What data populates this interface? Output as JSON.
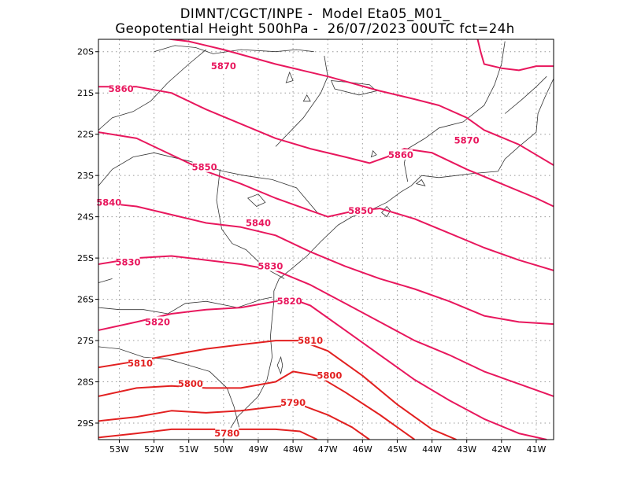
{
  "title": {
    "line1": "DIMNT/CGCT/INPE -  Model Eta05_M01_",
    "line2": "Geopotential Height 500hPa -  26/07/2023 00UTC fct=24h"
  },
  "axes": {
    "lon_labels": [
      "53W",
      "52W",
      "51W",
      "50W",
      "49W",
      "48W",
      "47W",
      "46W",
      "45W",
      "44W",
      "43W",
      "42W",
      "41W"
    ],
    "lat_labels": [
      "20S",
      "21S",
      "22S",
      "23S",
      "24S",
      "25S",
      "26S",
      "27S",
      "28S",
      "29S"
    ],
    "lon_range": [
      -53.6,
      -40.5
    ],
    "lat_range": [
      -29.4,
      -19.7
    ],
    "grid": true
  },
  "contours": [
    {
      "value": 5870,
      "label": "5870",
      "color": "#e8175d",
      "points": [
        [
          -53.6,
          -19.65
        ],
        [
          -52.0,
          -19.65
        ],
        [
          -51.0,
          -19.75
        ],
        [
          -50.0,
          -19.95
        ],
        [
          -48.5,
          -20.3
        ],
        [
          -47.0,
          -20.6
        ],
        [
          -45.5,
          -20.95
        ],
        [
          -44.5,
          -21.15
        ],
        [
          -43.8,
          -21.3
        ],
        [
          -43.0,
          -21.6
        ],
        [
          -42.5,
          -21.9
        ],
        [
          -41.5,
          -22.25
        ],
        [
          -40.5,
          -22.75
        ]
      ]
    },
    {
      "value": 5870,
      "label": "",
      "color": "#e8175d",
      "points": [
        [
          -42.7,
          -19.65
        ],
        [
          -42.6,
          -20.0
        ],
        [
          -42.5,
          -20.3
        ],
        [
          -42.0,
          -20.4
        ],
        [
          -41.5,
          -20.45
        ],
        [
          -41.0,
          -20.35
        ],
        [
          -40.5,
          -20.35
        ]
      ]
    },
    {
      "value": 5860,
      "label": "5860",
      "color": "#e8175d",
      "points": [
        [
          -53.6,
          -20.85
        ],
        [
          -52.5,
          -20.85
        ],
        [
          -51.5,
          -21.0
        ],
        [
          -50.5,
          -21.4
        ],
        [
          -49.5,
          -21.75
        ],
        [
          -48.5,
          -22.1
        ],
        [
          -47.5,
          -22.35
        ],
        [
          -46.5,
          -22.55
        ],
        [
          -45.8,
          -22.7
        ],
        [
          -45.3,
          -22.55
        ],
        [
          -44.8,
          -22.35
        ],
        [
          -44.0,
          -22.45
        ],
        [
          -43.0,
          -22.85
        ],
        [
          -42.0,
          -23.2
        ],
        [
          -41.0,
          -23.55
        ],
        [
          -40.5,
          -23.75
        ]
      ]
    },
    {
      "value": 5850,
      "label": "5850",
      "color": "#e8175d",
      "points": [
        [
          -53.6,
          -21.95
        ],
        [
          -52.5,
          -22.1
        ],
        [
          -51.5,
          -22.5
        ],
        [
          -50.5,
          -22.9
        ],
        [
          -49.5,
          -23.2
        ],
        [
          -48.5,
          -23.55
        ],
        [
          -47.5,
          -23.85
        ],
        [
          -47.0,
          -24.0
        ],
        [
          -46.2,
          -23.85
        ],
        [
          -45.5,
          -23.8
        ],
        [
          -44.5,
          -24.05
        ],
        [
          -43.5,
          -24.4
        ],
        [
          -42.5,
          -24.75
        ],
        [
          -41.5,
          -25.05
        ],
        [
          -40.5,
          -25.3
        ]
      ]
    },
    {
      "value": 5840,
      "label": "5840",
      "color": "#e8175d",
      "points": [
        [
          -53.6,
          -23.65
        ],
        [
          -52.5,
          -23.75
        ],
        [
          -51.5,
          -23.95
        ],
        [
          -50.5,
          -24.15
        ],
        [
          -49.5,
          -24.25
        ],
        [
          -48.5,
          -24.45
        ],
        [
          -47.5,
          -24.85
        ],
        [
          -46.5,
          -25.2
        ],
        [
          -45.5,
          -25.5
        ],
        [
          -44.5,
          -25.75
        ],
        [
          -43.5,
          -26.05
        ],
        [
          -42.5,
          -26.4
        ],
        [
          -41.5,
          -26.55
        ],
        [
          -40.5,
          -26.6
        ]
      ]
    },
    {
      "value": 5830,
      "label": "5830",
      "color": "#e8175d",
      "points": [
        [
          -53.6,
          -25.15
        ],
        [
          -52.5,
          -25.0
        ],
        [
          -51.5,
          -24.95
        ],
        [
          -50.5,
          -25.05
        ],
        [
          -49.5,
          -25.15
        ],
        [
          -48.5,
          -25.3
        ],
        [
          -47.5,
          -25.65
        ],
        [
          -46.5,
          -26.1
        ],
        [
          -45.5,
          -26.55
        ],
        [
          -44.5,
          -27.0
        ],
        [
          -43.5,
          -27.35
        ],
        [
          -42.5,
          -27.75
        ],
        [
          -41.5,
          -28.05
        ],
        [
          -40.5,
          -28.35
        ]
      ]
    },
    {
      "value": 5820,
      "label": "5820",
      "color": "#e8175d",
      "points": [
        [
          -53.6,
          -26.75
        ],
        [
          -52.5,
          -26.55
        ],
        [
          -51.5,
          -26.35
        ],
        [
          -50.5,
          -26.25
        ],
        [
          -49.5,
          -26.2
        ],
        [
          -48.5,
          -26.05
        ],
        [
          -48.0,
          -26.0
        ],
        [
          -47.5,
          -26.15
        ],
        [
          -46.5,
          -26.75
        ],
        [
          -45.5,
          -27.35
        ],
        [
          -44.5,
          -27.95
        ],
        [
          -43.5,
          -28.45
        ],
        [
          -42.5,
          -28.9
        ],
        [
          -41.5,
          -29.25
        ],
        [
          -40.7,
          -29.4
        ]
      ]
    },
    {
      "value": 5810,
      "label": "5810",
      "color": "#e22020",
      "points": [
        [
          -53.6,
          -27.65
        ],
        [
          -52.5,
          -27.5
        ],
        [
          -51.5,
          -27.35
        ],
        [
          -50.5,
          -27.2
        ],
        [
          -49.5,
          -27.1
        ],
        [
          -48.5,
          -27.0
        ],
        [
          -47.8,
          -27.0
        ],
        [
          -47.0,
          -27.25
        ],
        [
          -46.0,
          -27.85
        ],
        [
          -45.0,
          -28.55
        ],
        [
          -44.0,
          -29.15
        ],
        [
          -43.3,
          -29.4
        ]
      ]
    },
    {
      "value": 5800,
      "label": "5800",
      "color": "#e22020",
      "points": [
        [
          -53.6,
          -28.35
        ],
        [
          -52.5,
          -28.15
        ],
        [
          -51.5,
          -28.1
        ],
        [
          -50.5,
          -28.15
        ],
        [
          -49.5,
          -28.15
        ],
        [
          -48.5,
          -28.0
        ],
        [
          -48.0,
          -27.75
        ],
        [
          -47.3,
          -27.85
        ],
        [
          -46.5,
          -28.25
        ],
        [
          -45.5,
          -28.8
        ],
        [
          -45.0,
          -29.1
        ],
        [
          -44.5,
          -29.4
        ]
      ]
    },
    {
      "value": 5790,
      "label": "5790",
      "color": "#e22020",
      "points": [
        [
          -53.6,
          -28.95
        ],
        [
          -52.5,
          -28.85
        ],
        [
          -51.5,
          -28.7
        ],
        [
          -50.5,
          -28.75
        ],
        [
          -49.5,
          -28.7
        ],
        [
          -48.5,
          -28.6
        ],
        [
          -47.8,
          -28.55
        ],
        [
          -47.0,
          -28.8
        ],
        [
          -46.3,
          -29.1
        ],
        [
          -45.8,
          -29.4
        ]
      ]
    },
    {
      "value": 5780,
      "label": "5780",
      "color": "#e22020",
      "points": [
        [
          -53.6,
          -29.35
        ],
        [
          -52.5,
          -29.25
        ],
        [
          -51.5,
          -29.15
        ],
        [
          -50.5,
          -29.15
        ],
        [
          -49.5,
          -29.15
        ],
        [
          -48.5,
          -29.15
        ],
        [
          -47.8,
          -29.2
        ],
        [
          -47.3,
          -29.4
        ]
      ]
    }
  ],
  "contour_labels": [
    {
      "text": "5870",
      "lon": -50.0,
      "lat": -20.35,
      "color": "#e8175d"
    },
    {
      "text": "5870",
      "lon": -43.0,
      "lat": -22.15,
      "color": "#e8175d"
    },
    {
      "text": "5860",
      "lon": -52.95,
      "lat": -20.9,
      "color": "#e8175d"
    },
    {
      "text": "5860",
      "lon": -44.9,
      "lat": -22.5,
      "color": "#e8175d"
    },
    {
      "text": "5850",
      "lon": -50.55,
      "lat": -22.8,
      "color": "#e8175d"
    },
    {
      "text": "5850",
      "lon": -46.05,
      "lat": -23.85,
      "color": "#e8175d"
    },
    {
      "text": "5840",
      "lon": -53.3,
      "lat": -23.65,
      "color": "#e8175d"
    },
    {
      "text": "5840",
      "lon": -49.0,
      "lat": -24.15,
      "color": "#e8175d"
    },
    {
      "text": "5830",
      "lon": -52.75,
      "lat": -25.1,
      "color": "#e8175d"
    },
    {
      "text": "5830",
      "lon": -48.65,
      "lat": -25.2,
      "color": "#e8175d"
    },
    {
      "text": "5820",
      "lon": -51.9,
      "lat": -26.55,
      "color": "#e8175d"
    },
    {
      "text": "5820",
      "lon": -48.1,
      "lat": -26.05,
      "color": "#e8175d"
    },
    {
      "text": "5810",
      "lon": -52.4,
      "lat": -27.55,
      "color": "#e22020"
    },
    {
      "text": "5810",
      "lon": -47.5,
      "lat": -27.0,
      "color": "#e22020"
    },
    {
      "text": "5800",
      "lon": -50.95,
      "lat": -28.05,
      "color": "#e22020"
    },
    {
      "text": "5800",
      "lon": -46.95,
      "lat": -27.85,
      "color": "#e22020"
    },
    {
      "text": "5790",
      "lon": -48.0,
      "lat": -28.5,
      "color": "#e22020"
    },
    {
      "text": "5780",
      "lon": -49.9,
      "lat": -29.25,
      "color": "#e22020"
    }
  ],
  "coastline": [
    [
      [
        -50.0,
        -29.4
      ],
      [
        -49.6,
        -28.85
      ],
      [
        -49.0,
        -28.35
      ],
      [
        -48.75,
        -27.95
      ],
      [
        -48.6,
        -27.4
      ],
      [
        -48.65,
        -26.9
      ],
      [
        -48.6,
        -26.45
      ],
      [
        -48.55,
        -26.05
      ],
      [
        -48.55,
        -25.8
      ],
      [
        -48.4,
        -25.5
      ],
      [
        -48.1,
        -25.3
      ],
      [
        -47.6,
        -24.95
      ],
      [
        -47.2,
        -24.6
      ],
      [
        -46.7,
        -24.2
      ],
      [
        -46.3,
        -24.0
      ],
      [
        -45.8,
        -23.85
      ],
      [
        -45.3,
        -23.65
      ],
      [
        -44.9,
        -23.4
      ],
      [
        -44.6,
        -23.25
      ],
      [
        -44.3,
        -23.0
      ],
      [
        -43.8,
        -23.05
      ],
      [
        -43.3,
        -23.0
      ],
      [
        -42.8,
        -22.95
      ],
      [
        -42.1,
        -22.9
      ],
      [
        -41.9,
        -22.6
      ],
      [
        -41.5,
        -22.3
      ],
      [
        -41.0,
        -21.95
      ],
      [
        -40.95,
        -21.5
      ],
      [
        -40.75,
        -21.1
      ],
      [
        -40.5,
        -20.65
      ]
    ]
  ],
  "borders": [
    [
      [
        -52.0,
        -20.0
      ],
      [
        -51.4,
        -19.85
      ],
      [
        -50.8,
        -19.9
      ],
      [
        -50.3,
        -20.05
      ],
      [
        -49.5,
        -19.95
      ],
      [
        -48.5,
        -20.0
      ],
      [
        -47.9,
        -19.95
      ],
      [
        -47.4,
        -20.0
      ]
    ],
    [
      [
        -53.6,
        -21.9
      ],
      [
        -53.2,
        -21.6
      ],
      [
        -52.6,
        -21.45
      ],
      [
        -52.1,
        -21.2
      ],
      [
        -51.6,
        -20.75
      ],
      [
        -51.0,
        -20.3
      ],
      [
        -50.5,
        -19.95
      ]
    ],
    [
      [
        -53.6,
        -23.25
      ],
      [
        -53.2,
        -22.85
      ],
      [
        -52.6,
        -22.55
      ],
      [
        -52.0,
        -22.45
      ],
      [
        -51.0,
        -22.65
      ],
      [
        -50.0,
        -22.9
      ],
      [
        -49.4,
        -23.0
      ],
      [
        -48.6,
        -23.1
      ],
      [
        -47.9,
        -23.3
      ],
      [
        -47.3,
        -23.9
      ]
    ],
    [
      [
        -50.1,
        -22.85
      ],
      [
        -50.2,
        -23.6
      ],
      [
        -50.05,
        -24.3
      ],
      [
        -49.75,
        -24.65
      ],
      [
        -49.35,
        -24.8
      ],
      [
        -48.8,
        -25.25
      ],
      [
        -48.25,
        -25.5
      ]
    ],
    [
      [
        -48.5,
        -22.3
      ],
      [
        -47.7,
        -21.6
      ],
      [
        -47.2,
        -21.0
      ],
      [
        -47.0,
        -20.6
      ],
      [
        -47.1,
        -20.1
      ]
    ],
    [
      [
        -44.7,
        -22.35
      ],
      [
        -44.2,
        -22.1
      ],
      [
        -43.8,
        -21.85
      ],
      [
        -43.1,
        -21.7
      ],
      [
        -42.5,
        -21.3
      ],
      [
        -42.2,
        -20.8
      ],
      [
        -42.0,
        -20.3
      ],
      [
        -41.9,
        -19.75
      ]
    ],
    [
      [
        -44.7,
        -22.35
      ],
      [
        -44.8,
        -22.7
      ],
      [
        -44.7,
        -23.15
      ]
    ],
    [
      [
        -41.9,
        -21.5
      ],
      [
        -41.4,
        -21.15
      ],
      [
        -41.0,
        -20.85
      ],
      [
        -40.7,
        -20.6
      ]
    ],
    [
      [
        -53.6,
        -26.2
      ],
      [
        -53.0,
        -26.25
      ],
      [
        -52.3,
        -26.25
      ],
      [
        -51.6,
        -26.35
      ],
      [
        -51.1,
        -26.1
      ],
      [
        -50.5,
        -26.05
      ],
      [
        -49.6,
        -26.2
      ],
      [
        -48.9,
        -26.0
      ],
      [
        -48.6,
        -25.95
      ]
    ],
    [
      [
        -53.6,
        -27.15
      ],
      [
        -53.0,
        -27.2
      ],
      [
        -52.3,
        -27.4
      ],
      [
        -51.6,
        -27.45
      ],
      [
        -51.0,
        -27.6
      ],
      [
        -50.4,
        -27.75
      ],
      [
        -49.9,
        -28.15
      ],
      [
        -49.7,
        -28.6
      ],
      [
        -49.55,
        -29.1
      ]
    ],
    [
      [
        -53.6,
        -25.6
      ],
      [
        -53.4,
        -25.55
      ],
      [
        -53.2,
        -25.5
      ]
    ]
  ],
  "islands": [
    [
      [
        -48.35,
        -27.4
      ],
      [
        -48.45,
        -27.6
      ],
      [
        -48.35,
        -27.8
      ],
      [
        -48.3,
        -27.6
      ],
      [
        -48.35,
        -27.4
      ]
    ],
    [
      [
        -45.3,
        -23.75
      ],
      [
        -45.45,
        -23.9
      ],
      [
        -45.3,
        -24.0
      ],
      [
        -45.2,
        -23.85
      ],
      [
        -45.3,
        -23.75
      ]
    ],
    [
      [
        -44.3,
        -23.1
      ],
      [
        -44.45,
        -23.2
      ],
      [
        -44.2,
        -23.25
      ],
      [
        -44.3,
        -23.1
      ]
    ]
  ],
  "lakes": [
    [
      [
        -49.3,
        -23.55
      ],
      [
        -49.05,
        -23.75
      ],
      [
        -48.8,
        -23.65
      ],
      [
        -49.0,
        -23.45
      ],
      [
        -49.3,
        -23.55
      ]
    ],
    [
      [
        -46.9,
        -20.7
      ],
      [
        -46.3,
        -20.75
      ],
      [
        -45.8,
        -20.8
      ],
      [
        -45.6,
        -20.95
      ],
      [
        -46.1,
        -21.05
      ],
      [
        -46.8,
        -20.9
      ],
      [
        -46.9,
        -20.7
      ]
    ],
    [
      [
        -48.1,
        -20.5
      ],
      [
        -48.0,
        -20.7
      ],
      [
        -48.2,
        -20.75
      ],
      [
        -48.1,
        -20.5
      ]
    ],
    [
      [
        -47.6,
        -21.05
      ],
      [
        -47.5,
        -21.2
      ],
      [
        -47.7,
        -21.2
      ],
      [
        -47.6,
        -21.05
      ]
    ],
    [
      [
        -45.7,
        -22.4
      ],
      [
        -45.6,
        -22.5
      ],
      [
        -45.75,
        -22.55
      ],
      [
        -45.7,
        -22.4
      ]
    ]
  ]
}
